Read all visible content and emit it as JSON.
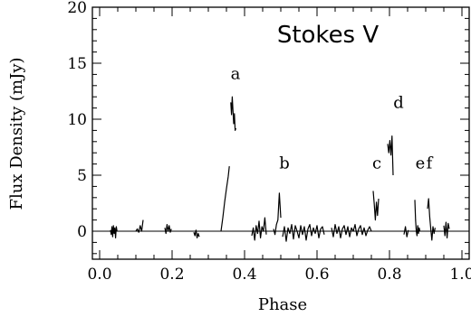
{
  "chart_data": {
    "type": "line",
    "title": "Stokes V",
    "xlabel": "Phase",
    "ylabel": "Flux Density (mJy)",
    "xlim": [
      -0.02,
      1.02
    ],
    "ylim": [
      -2.5,
      20
    ],
    "xticks": [
      0.0,
      0.2,
      0.4,
      0.6,
      0.8,
      1.0
    ],
    "xtick_labels": [
      "0.0",
      "0.2",
      "0.4",
      "0.6",
      "0.8",
      "1.0"
    ],
    "yticks": [
      0,
      5,
      10,
      15,
      20
    ],
    "ytick_labels": [
      "0",
      "5",
      "10",
      "15",
      "20"
    ],
    "zero_line": true,
    "grid": false,
    "annotations": [
      {
        "label": "a",
        "x": 0.375,
        "y": 13.6
      },
      {
        "label": "b",
        "x": 0.51,
        "y": 5.6
      },
      {
        "label": "c",
        "x": 0.765,
        "y": 5.6
      },
      {
        "label": "d",
        "x": 0.825,
        "y": 11.0
      },
      {
        "label": "e",
        "x": 0.885,
        "y": 5.6
      },
      {
        "label": "f",
        "x": 0.91,
        "y": 5.6
      }
    ],
    "series": [
      {
        "x": [
          0.03,
          0.032,
          0.034,
          0.036,
          0.038,
          0.04,
          0.042,
          0.044,
          0.046,
          0.048
        ],
        "y": [
          0.1,
          -0.3,
          0.4,
          -0.5,
          0.5,
          -0.2,
          0.3,
          -0.6,
          0.4,
          0.0
        ]
      },
      {
        "x": [
          0.1,
          0.104,
          0.108,
          0.112,
          0.116,
          0.12
        ],
        "y": [
          0.0,
          0.2,
          -0.1,
          0.5,
          0.0,
          1.0
        ]
      },
      {
        "x": [
          0.18,
          0.183,
          0.186,
          0.189,
          0.192,
          0.195,
          0.198
        ],
        "y": [
          0.3,
          -0.2,
          0.6,
          0.0,
          0.5,
          -0.1,
          0.2
        ]
      },
      {
        "x": [
          0.26,
          0.263,
          0.266,
          0.269,
          0.272,
          0.275
        ],
        "y": [
          -0.1,
          -0.4,
          0.1,
          -0.6,
          -0.2,
          -0.5
        ]
      },
      {
        "x": [
          0.335,
          0.34,
          0.345,
          0.35,
          0.355,
          0.358
        ],
        "y": [
          0.0,
          1.2,
          2.6,
          3.8,
          4.9,
          5.8
        ]
      },
      {
        "x": [
          0.362,
          0.364,
          0.366,
          0.368,
          0.37,
          0.372,
          0.374,
          0.376
        ],
        "y": [
          11.5,
          10.4,
          12.0,
          10.8,
          9.6,
          10.5,
          9.0,
          9.2
        ]
      },
      {
        "x": [
          0.42,
          0.424,
          0.428,
          0.432,
          0.436,
          0.44,
          0.444,
          0.448,
          0.452,
          0.456,
          0.46
        ],
        "y": [
          -0.4,
          0.3,
          -0.8,
          0.5,
          -0.2,
          0.9,
          -0.6,
          0.4,
          0.0,
          1.2,
          -0.3
        ]
      },
      {
        "x": [
          0.48,
          0.484,
          0.488,
          0.492,
          0.496,
          0.5
        ],
        "y": [
          0.2,
          -0.3,
          0.6,
          1.0,
          3.4,
          1.2
        ]
      },
      {
        "x": [
          0.505,
          0.51,
          0.515,
          0.52,
          0.525,
          0.53,
          0.535,
          0.54,
          0.545,
          0.55,
          0.555,
          0.56,
          0.565,
          0.57,
          0.575,
          0.58,
          0.585,
          0.59,
          0.595,
          0.6,
          0.605,
          0.61,
          0.615,
          0.62
        ],
        "y": [
          -0.5,
          0.4,
          -0.9,
          0.3,
          -0.2,
          0.6,
          -0.7,
          0.5,
          0.0,
          -0.6,
          0.5,
          -0.3,
          0.4,
          -0.8,
          0.2,
          0.6,
          -0.4,
          0.3,
          -0.2,
          0.5,
          -0.6,
          0.2,
          0.4,
          -0.3
        ]
      },
      {
        "x": [
          0.64,
          0.645,
          0.65,
          0.655,
          0.66,
          0.665,
          0.67,
          0.675,
          0.68,
          0.685,
          0.69,
          0.695,
          0.7,
          0.705,
          0.71,
          0.715,
          0.72,
          0.725,
          0.73,
          0.735,
          0.74,
          0.745,
          0.75
        ],
        "y": [
          0.3,
          -0.5,
          0.6,
          -0.2,
          0.4,
          -0.6,
          0.2,
          0.5,
          -0.3,
          0.4,
          -0.5,
          0.3,
          0.0,
          0.6,
          -0.4,
          0.2,
          0.5,
          -0.3,
          0.3,
          -0.4,
          0.1,
          0.4,
          0.0
        ]
      },
      {
        "x": [
          0.755,
          0.758,
          0.761,
          0.764,
          0.767,
          0.77
        ],
        "y": [
          3.6,
          2.4,
          1.0,
          2.6,
          1.4,
          2.9
        ]
      },
      {
        "x": [
          0.795,
          0.798,
          0.801,
          0.804,
          0.807,
          0.81
        ],
        "y": [
          7.8,
          7.0,
          8.1,
          6.8,
          8.5,
          5.0
        ]
      },
      {
        "x": [
          0.84,
          0.844,
          0.848,
          0.852
        ],
        "y": [
          -0.3,
          0.4,
          -0.5,
          0.1
        ]
      },
      {
        "x": [
          0.87,
          0.872,
          0.874,
          0.876,
          0.878,
          0.88,
          0.882,
          0.884
        ],
        "y": [
          2.8,
          1.0,
          0.0,
          -0.4,
          0.5,
          -0.2,
          0.3,
          0.0
        ]
      },
      {
        "x": [
          0.905,
          0.908,
          0.911,
          0.914,
          0.917,
          0.92,
          0.923,
          0.926
        ],
        "y": [
          2.0,
          2.9,
          1.3,
          0.2,
          -0.8,
          0.4,
          -0.2,
          0.3
        ]
      },
      {
        "x": [
          0.95,
          0.953,
          0.956,
          0.959,
          0.962,
          0.965
        ],
        "y": [
          0.5,
          -0.4,
          0.8,
          -0.6,
          0.7,
          0.2
        ]
      }
    ]
  }
}
